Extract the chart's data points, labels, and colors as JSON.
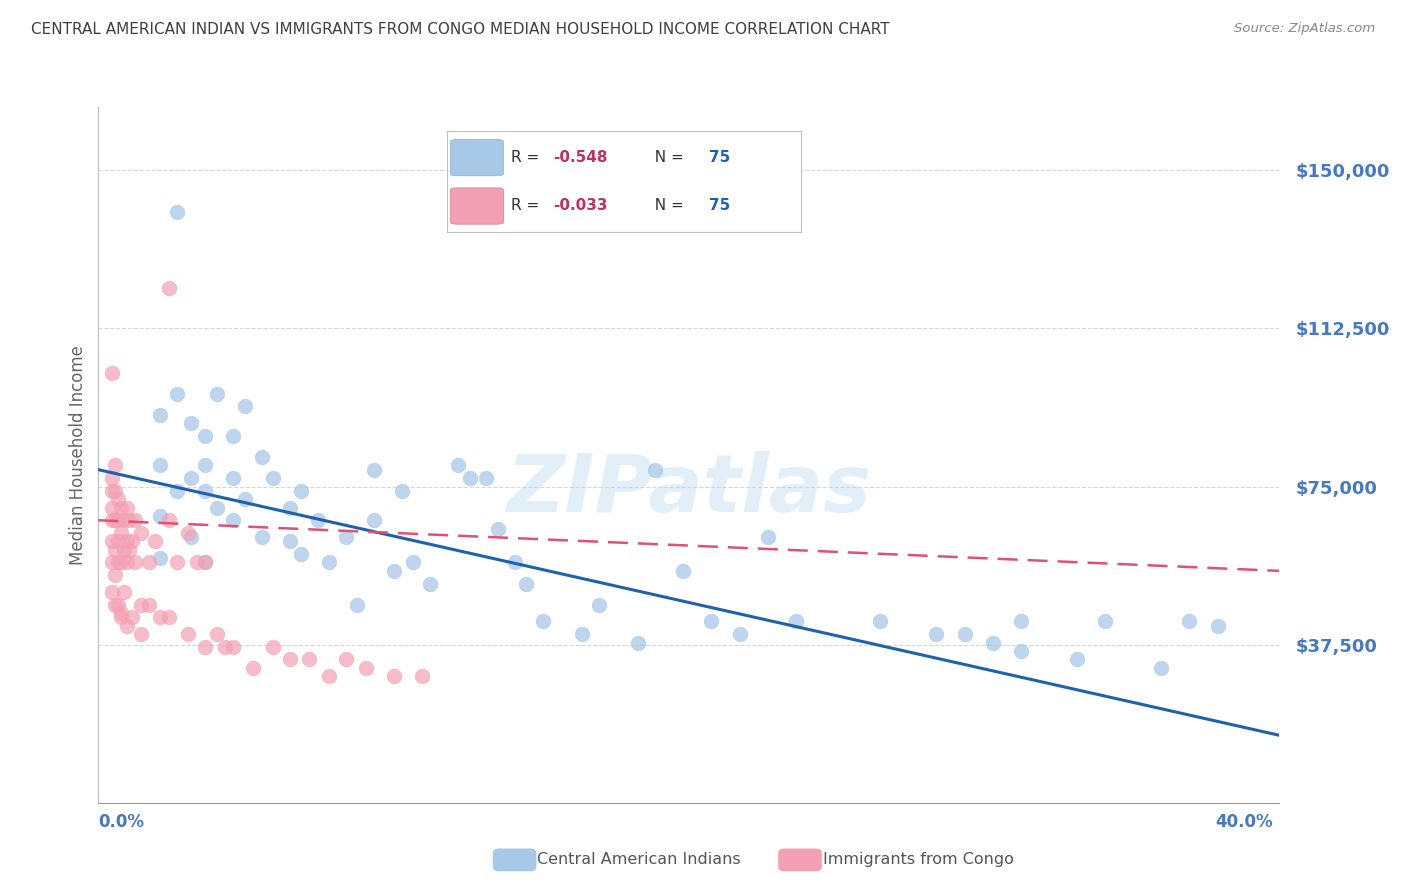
{
  "title": "CENTRAL AMERICAN INDIAN VS IMMIGRANTS FROM CONGO MEDIAN HOUSEHOLD INCOME CORRELATION CHART",
  "source": "Source: ZipAtlas.com",
  "ylabel": "Median Household Income",
  "y_ticks": [
    0,
    37500,
    75000,
    112500,
    150000
  ],
  "y_tick_labels": [
    "",
    "$37,500",
    "$75,000",
    "$112,500",
    "$150,000"
  ],
  "ylim": [
    0,
    165000
  ],
  "xlim": [
    0.0,
    0.42
  ],
  "blue_color": "#a8c8e8",
  "pink_color": "#f4a0b4",
  "blue_line_color": "#2060b0",
  "pink_line_color": "#e05070",
  "watermark_text": "ZIPatlas",
  "background_color": "#ffffff",
  "grid_color": "#cccccc",
  "title_color": "#404040",
  "axis_label_color": "#4878c0",
  "blue_scatter_x": [
    0.022,
    0.022,
    0.022,
    0.022,
    0.028,
    0.028,
    0.028,
    0.033,
    0.033,
    0.033,
    0.038,
    0.038,
    0.038,
    0.038,
    0.042,
    0.042,
    0.048,
    0.048,
    0.048,
    0.052,
    0.052,
    0.058,
    0.058,
    0.062,
    0.068,
    0.068,
    0.072,
    0.072,
    0.078,
    0.082,
    0.088,
    0.092,
    0.098,
    0.098,
    0.105,
    0.108,
    0.112,
    0.118,
    0.128,
    0.138,
    0.142,
    0.148,
    0.152,
    0.158,
    0.172,
    0.178,
    0.192,
    0.198,
    0.208,
    0.218,
    0.228,
    0.238,
    0.248,
    0.278,
    0.298,
    0.308,
    0.318,
    0.328,
    0.328,
    0.348,
    0.358,
    0.378,
    0.388,
    0.398,
    0.132
  ],
  "blue_scatter_y": [
    92000,
    80000,
    68000,
    58000,
    140000,
    97000,
    74000,
    90000,
    77000,
    63000,
    87000,
    80000,
    74000,
    57000,
    97000,
    70000,
    87000,
    77000,
    67000,
    94000,
    72000,
    82000,
    63000,
    77000,
    70000,
    62000,
    74000,
    59000,
    67000,
    57000,
    63000,
    47000,
    79000,
    67000,
    55000,
    74000,
    57000,
    52000,
    80000,
    77000,
    65000,
    57000,
    52000,
    43000,
    40000,
    47000,
    38000,
    79000,
    55000,
    43000,
    40000,
    63000,
    43000,
    43000,
    40000,
    40000,
    38000,
    43000,
    36000,
    34000,
    43000,
    32000,
    43000,
    42000,
    77000
  ],
  "pink_scatter_x": [
    0.005,
    0.005,
    0.005,
    0.005,
    0.005,
    0.005,
    0.005,
    0.005,
    0.006,
    0.006,
    0.006,
    0.006,
    0.006,
    0.006,
    0.007,
    0.007,
    0.007,
    0.007,
    0.007,
    0.008,
    0.008,
    0.008,
    0.008,
    0.009,
    0.009,
    0.009,
    0.01,
    0.01,
    0.01,
    0.011,
    0.011,
    0.012,
    0.013,
    0.013,
    0.015,
    0.015,
    0.018,
    0.018,
    0.02,
    0.022,
    0.025,
    0.025,
    0.028,
    0.032,
    0.035,
    0.038,
    0.042,
    0.048,
    0.055,
    0.062,
    0.068,
    0.075,
    0.082,
    0.088,
    0.095,
    0.105,
    0.115,
    0.025,
    0.032,
    0.038,
    0.045,
    0.008,
    0.01,
    0.012,
    0.015
  ],
  "pink_scatter_y": [
    102000,
    77000,
    74000,
    70000,
    67000,
    62000,
    57000,
    50000,
    80000,
    74000,
    67000,
    60000,
    54000,
    47000,
    72000,
    67000,
    62000,
    57000,
    47000,
    70000,
    64000,
    57000,
    45000,
    67000,
    60000,
    50000,
    70000,
    62000,
    57000,
    67000,
    60000,
    62000,
    67000,
    57000,
    64000,
    47000,
    57000,
    47000,
    62000,
    44000,
    67000,
    44000,
    57000,
    64000,
    57000,
    57000,
    40000,
    37000,
    32000,
    37000,
    34000,
    34000,
    30000,
    34000,
    32000,
    30000,
    30000,
    122000,
    40000,
    37000,
    37000,
    44000,
    42000,
    44000,
    40000
  ],
  "blue_trend_x": [
    0.0,
    0.42
  ],
  "blue_trend_y": [
    79000,
    16000
  ],
  "pink_trend_x": [
    0.0,
    0.42
  ],
  "pink_trend_y": [
    67000,
    55000
  ]
}
